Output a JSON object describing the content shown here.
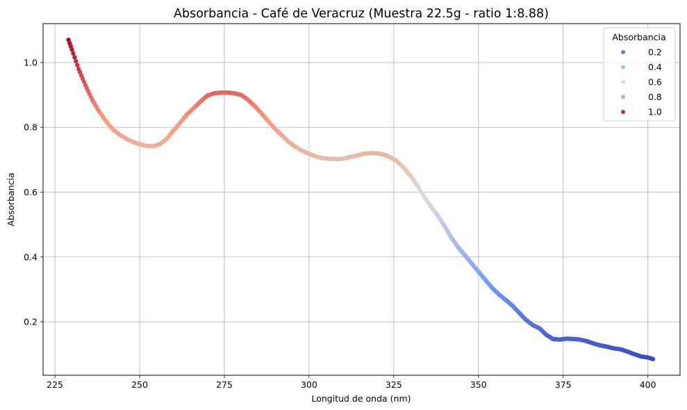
{
  "chart_data": {
    "type": "scatter",
    "title": "Absorbancia - Café de Veracruz (Muestra 22.5g - ratio 1:8.88)",
    "xlabel": "Longitud de onda (nm)",
    "ylabel": "Absorbancia",
    "xlim": [
      221.5,
      409.5
    ],
    "ylim": [
      0.035,
      1.12
    ],
    "xticks": [
      225,
      250,
      275,
      300,
      325,
      350,
      375,
      400
    ],
    "yticks": [
      0.2,
      0.4,
      0.6,
      0.8,
      1.0
    ],
    "grid": true,
    "colormap": "coolwarm",
    "color_range": [
      0.085,
      1.07
    ],
    "legend": {
      "title": "Absorbancia",
      "placement": "top-right",
      "entries": [
        {
          "label": "0.2",
          "color": "#5a78e4"
        },
        {
          "label": "0.4",
          "color": "#a3c2fe"
        },
        {
          "label": "0.6",
          "color": "#dddcdb"
        },
        {
          "label": "0.8",
          "color": "#f4a080"
        },
        {
          "label": "1.0",
          "color": "#c43032"
        }
      ]
    },
    "x": [
      229,
      230,
      232,
      234,
      236,
      238,
      240,
      242,
      244,
      246,
      248,
      250,
      252,
      254,
      256,
      258,
      260,
      262,
      264,
      266,
      268,
      270,
      272,
      274,
      276,
      278,
      280,
      282,
      284,
      286,
      288,
      290,
      292,
      294,
      296,
      298,
      300,
      302,
      304,
      306,
      308,
      310,
      312,
      314,
      316,
      318,
      320,
      322,
      324,
      326,
      328,
      330,
      332,
      334,
      336,
      338,
      340,
      342,
      344,
      346,
      348,
      350,
      352,
      354,
      356,
      358,
      360,
      362,
      364,
      366,
      368,
      370,
      372,
      374,
      376,
      378,
      380,
      382,
      384,
      386,
      388,
      390,
      392,
      394,
      396,
      398,
      400,
      401.5
    ],
    "y": [
      1.07,
      1.04,
      0.98,
      0.93,
      0.885,
      0.85,
      0.82,
      0.795,
      0.778,
      0.765,
      0.755,
      0.748,
      0.743,
      0.742,
      0.748,
      0.765,
      0.79,
      0.815,
      0.84,
      0.86,
      0.88,
      0.898,
      0.905,
      0.907,
      0.907,
      0.905,
      0.9,
      0.885,
      0.865,
      0.843,
      0.818,
      0.795,
      0.775,
      0.755,
      0.74,
      0.728,
      0.718,
      0.71,
      0.705,
      0.703,
      0.702,
      0.703,
      0.708,
      0.713,
      0.718,
      0.72,
      0.72,
      0.716,
      0.708,
      0.695,
      0.675,
      0.65,
      0.62,
      0.585,
      0.555,
      0.528,
      0.495,
      0.46,
      0.43,
      0.405,
      0.38,
      0.355,
      0.33,
      0.305,
      0.285,
      0.268,
      0.25,
      0.228,
      0.206,
      0.19,
      0.18,
      0.16,
      0.147,
      0.145,
      0.148,
      0.147,
      0.145,
      0.14,
      0.133,
      0.127,
      0.123,
      0.118,
      0.115,
      0.108,
      0.1,
      0.093,
      0.09,
      0.085
    ]
  }
}
